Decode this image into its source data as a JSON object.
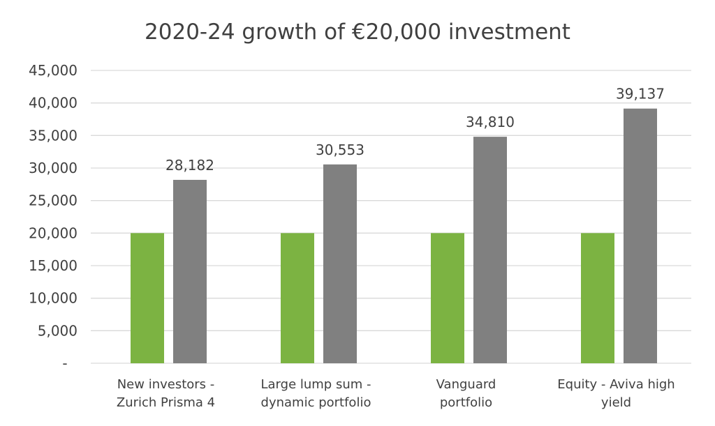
{
  "chart_data": {
    "type": "bar",
    "title": "2020-24 growth of €20,000 investment",
    "categories": [
      [
        "New investors -",
        "Zurich Prisma 4"
      ],
      [
        "Large lump sum -",
        "dynamic portfolio"
      ],
      [
        "Vanguard",
        "portfolio"
      ],
      [
        "Equity - Aviva high",
        "yield"
      ]
    ],
    "series": [
      {
        "values": [
          20000,
          20000,
          20000,
          20000
        ],
        "color": "#7cb342",
        "data_labels": false
      },
      {
        "values": [
          28182,
          30553,
          34810,
          39137
        ],
        "color": "#808080",
        "data_labels": true,
        "labels": [
          "28,182",
          "30,553",
          "34,810",
          "39,137"
        ]
      }
    ],
    "ylim": [
      0,
      45000
    ],
    "yticks": [
      0,
      5000,
      10000,
      15000,
      20000,
      25000,
      30000,
      35000,
      40000,
      45000
    ],
    "ytick_labels": [
      "-",
      "5,000",
      "10,000",
      "15,000",
      "20,000",
      "25,000",
      "30,000",
      "35,000",
      "40,000",
      "45,000"
    ],
    "grid": true,
    "legend": "none",
    "xlabel": "",
    "ylabel": ""
  }
}
